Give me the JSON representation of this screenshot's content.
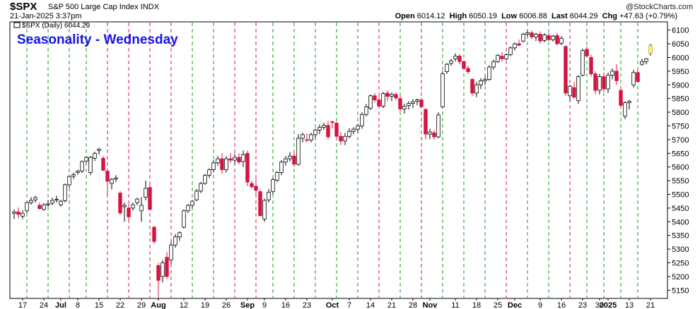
{
  "header": {
    "symbol": "$SPX",
    "description": "S&P 500 Large Cap Index INDX",
    "datetime": "21-Jan-2025 3:37pm",
    "brand": "@StockCharts.com",
    "open_label": "Open",
    "open": "6014.12",
    "high_label": "High",
    "high": "6050.19",
    "low_label": "Low",
    "low": "6006.88",
    "last_label": "Last",
    "last": "6044.29",
    "chg_label": "Chg",
    "chg": "+47.63 (+0.79%)"
  },
  "legend": {
    "label": "$SPX (Daily) 6044.29"
  },
  "annotation": {
    "text": "Seasonality - Wednesday"
  },
  "chart_data": {
    "type": "candlestick",
    "ylim": [
      5120,
      6130
    ],
    "yticks": [
      5150,
      5200,
      5250,
      5300,
      5350,
      5400,
      5450,
      5500,
      5550,
      5600,
      5650,
      5700,
      5750,
      5800,
      5850,
      5900,
      5950,
      6000,
      6050,
      6100
    ],
    "xtick_labels": [
      {
        "label": "17",
        "i": 2
      },
      {
        "label": "24",
        "i": 7
      },
      {
        "label": "Jul",
        "i": 11,
        "bold": true
      },
      {
        "label": "8",
        "i": 15
      },
      {
        "label": "15",
        "i": 20
      },
      {
        "label": "22",
        "i": 25
      },
      {
        "label": "29",
        "i": 30
      },
      {
        "label": "Aug",
        "i": 34,
        "bold": true
      },
      {
        "label": "12",
        "i": 40
      },
      {
        "label": "19",
        "i": 45
      },
      {
        "label": "26",
        "i": 50
      },
      {
        "label": "Sep",
        "i": 55,
        "bold": true
      },
      {
        "label": "9",
        "i": 59
      },
      {
        "label": "16",
        "i": 64
      },
      {
        "label": "23",
        "i": 69
      },
      {
        "label": "Oct",
        "i": 75,
        "bold": true
      },
      {
        "label": "7",
        "i": 79
      },
      {
        "label": "14",
        "i": 84
      },
      {
        "label": "21",
        "i": 89
      },
      {
        "label": "28",
        "i": 94
      },
      {
        "label": "Nov",
        "i": 98,
        "bold": true
      },
      {
        "label": "11",
        "i": 104
      },
      {
        "label": "18",
        "i": 109
      },
      {
        "label": "25",
        "i": 114
      },
      {
        "label": "Dec",
        "i": 118,
        "bold": true
      },
      {
        "label": "9",
        "i": 124
      },
      {
        "label": "16",
        "i": 129
      },
      {
        "label": "23",
        "i": 134
      },
      {
        "label": "30",
        "i": 138
      },
      {
        "label": "2025",
        "i": 140,
        "bold": true
      },
      {
        "label": "13",
        "i": 145
      },
      {
        "label": "21",
        "i": 150
      }
    ],
    "wednesday_indices": [
      3,
      8,
      13,
      17,
      22,
      27,
      32,
      37,
      42,
      47,
      52,
      57,
      61,
      66,
      71,
      76,
      81,
      86,
      91,
      96,
      101,
      106,
      111,
      116,
      121,
      126,
      131,
      135,
      139,
      143,
      147
    ],
    "wednesday_colors": [
      "green",
      "green",
      "green",
      "green",
      "red",
      "red",
      "red",
      "red",
      "green",
      "green",
      "red",
      "red",
      "green",
      "green",
      "green",
      "green",
      "green",
      "red",
      "green",
      "red",
      "green",
      "green",
      "green",
      "red",
      "green",
      "green",
      "red",
      "green",
      "green",
      "green",
      "green"
    ],
    "candles": [
      [
        5431,
        5445,
        5410,
        5436
      ],
      [
        5436,
        5452,
        5412,
        5427
      ],
      [
        5420,
        5442,
        5410,
        5431
      ],
      [
        5440,
        5475,
        5432,
        5470
      ],
      [
        5470,
        5490,
        5462,
        5478
      ],
      [
        5480,
        5495,
        5470,
        5488
      ],
      [
        5460,
        5470,
        5445,
        5448
      ],
      [
        5445,
        5468,
        5440,
        5462
      ],
      [
        5462,
        5480,
        5455,
        5465
      ],
      [
        5468,
        5488,
        5460,
        5478
      ],
      [
        5480,
        5495,
        5470,
        5482
      ],
      [
        5462,
        5480,
        5455,
        5475
      ],
      [
        5477,
        5540,
        5470,
        5535
      ],
      [
        5535,
        5572,
        5525,
        5565
      ],
      [
        5566,
        5580,
        5556,
        5572
      ],
      [
        5580,
        5590,
        5572,
        5585
      ],
      [
        5585,
        5624,
        5578,
        5620
      ],
      [
        5622,
        5640,
        5615,
        5635
      ],
      [
        5580,
        5640,
        5570,
        5635
      ],
      [
        5632,
        5656,
        5622,
        5650
      ],
      [
        5660,
        5670,
        5645,
        5665
      ],
      [
        5632,
        5640,
        5585,
        5588
      ],
      [
        5585,
        5592,
        5500,
        5548
      ],
      [
        5540,
        5560,
        5518,
        5555
      ],
      [
        5556,
        5570,
        5545,
        5560
      ],
      [
        5505,
        5512,
        5425,
        5432
      ],
      [
        5455,
        5470,
        5400,
        5460
      ],
      [
        5450,
        5470,
        5395,
        5418
      ],
      [
        5450,
        5470,
        5440,
        5462
      ],
      [
        5470,
        5488,
        5460,
        5483
      ],
      [
        5440,
        5490,
        5400,
        5460
      ],
      [
        5490,
        5550,
        5478,
        5522
      ],
      [
        5525,
        5545,
        5440,
        5445
      ],
      [
        5380,
        5385,
        5320,
        5328
      ],
      [
        5240,
        5250,
        5122,
        5186
      ],
      [
        5200,
        5260,
        5178,
        5250
      ],
      [
        5270,
        5290,
        5190,
        5200
      ],
      [
        5260,
        5330,
        5245,
        5315
      ],
      [
        5315,
        5355,
        5305,
        5345
      ],
      [
        5345,
        5365,
        5330,
        5360
      ],
      [
        5380,
        5445,
        5375,
        5440
      ],
      [
        5440,
        5465,
        5432,
        5460
      ],
      [
        5460,
        5480,
        5450,
        5475
      ],
      [
        5480,
        5520,
        5475,
        5512
      ],
      [
        5512,
        5545,
        5505,
        5540
      ],
      [
        5540,
        5575,
        5535,
        5570
      ],
      [
        5570,
        5595,
        5560,
        5590
      ],
      [
        5590,
        5625,
        5580,
        5615
      ],
      [
        5615,
        5640,
        5605,
        5630
      ],
      [
        5630,
        5650,
        5575,
        5590
      ],
      [
        5590,
        5640,
        5580,
        5630
      ],
      [
        5630,
        5650,
        5615,
        5625
      ],
      [
        5625,
        5648,
        5610,
        5635
      ],
      [
        5635,
        5650,
        5610,
        5618
      ],
      [
        5620,
        5660,
        5600,
        5645
      ],
      [
        5650,
        5660,
        5530,
        5545
      ],
      [
        5540,
        5550,
        5520,
        5528
      ],
      [
        5530,
        5560,
        5500,
        5515
      ],
      [
        5510,
        5520,
        5420,
        5422
      ],
      [
        5410,
        5485,
        5400,
        5478
      ],
      [
        5480,
        5520,
        5470,
        5508
      ],
      [
        5510,
        5560,
        5500,
        5554
      ],
      [
        5552,
        5585,
        5545,
        5580
      ],
      [
        5580,
        5625,
        5570,
        5618
      ],
      [
        5618,
        5640,
        5605,
        5630
      ],
      [
        5630,
        5655,
        5620,
        5640
      ],
      [
        5640,
        5660,
        5600,
        5610
      ],
      [
        5610,
        5720,
        5605,
        5705
      ],
      [
        5705,
        5725,
        5690,
        5718
      ],
      [
        5700,
        5722,
        5690,
        5698
      ],
      [
        5698,
        5725,
        5690,
        5718
      ],
      [
        5718,
        5740,
        5705,
        5735
      ],
      [
        5735,
        5755,
        5720,
        5745
      ],
      [
        5745,
        5762,
        5735,
        5752
      ],
      [
        5752,
        5768,
        5700,
        5710
      ],
      [
        5765,
        5770,
        5740,
        5762
      ],
      [
        5760,
        5765,
        5700,
        5712
      ],
      [
        5712,
        5728,
        5680,
        5695
      ],
      [
        5695,
        5725,
        5680,
        5712
      ],
      [
        5712,
        5742,
        5705,
        5730
      ],
      [
        5730,
        5745,
        5720,
        5738
      ],
      [
        5738,
        5758,
        5725,
        5750
      ],
      [
        5750,
        5800,
        5740,
        5792
      ],
      [
        5792,
        5830,
        5785,
        5820
      ],
      [
        5815,
        5865,
        5808,
        5860
      ],
      [
        5860,
        5870,
        5835,
        5845
      ],
      [
        5845,
        5862,
        5815,
        5822
      ],
      [
        5822,
        5875,
        5815,
        5868
      ],
      [
        5870,
        5880,
        5840,
        5858
      ],
      [
        5858,
        5872,
        5840,
        5865
      ],
      [
        5865,
        5872,
        5845,
        5852
      ],
      [
        5850,
        5862,
        5800,
        5812
      ],
      [
        5812,
        5830,
        5795,
        5822
      ],
      [
        5825,
        5840,
        5810,
        5832
      ],
      [
        5832,
        5848,
        5815,
        5838
      ],
      [
        5840,
        5850,
        5825,
        5845
      ],
      [
        5845,
        5852,
        5815,
        5820
      ],
      [
        5810,
        5815,
        5700,
        5720
      ],
      [
        5720,
        5740,
        5702,
        5728
      ],
      [
        5725,
        5735,
        5700,
        5710
      ],
      [
        5710,
        5800,
        5705,
        5790
      ],
      [
        5820,
        5950,
        5815,
        5940
      ],
      [
        5948,
        5980,
        5940,
        5975
      ],
      [
        5978,
        5995,
        5970,
        5988
      ],
      [
        5995,
        6015,
        5985,
        6005
      ],
      [
        6005,
        6012,
        5975,
        5985
      ],
      [
        5985,
        5990,
        5955,
        5960
      ],
      [
        5960,
        5970,
        5940,
        5948
      ],
      [
        5920,
        5925,
        5860,
        5870
      ],
      [
        5870,
        5910,
        5855,
        5900
      ],
      [
        5900,
        5925,
        5885,
        5915
      ],
      [
        5915,
        5930,
        5900,
        5920
      ],
      [
        5920,
        5972,
        5915,
        5965
      ],
      [
        5965,
        5992,
        5955,
        5985
      ],
      [
        5985,
        6012,
        5980,
        6008
      ],
      [
        6005,
        6020,
        5985,
        5995
      ],
      [
        5995,
        6015,
        5990,
        6010
      ],
      [
        6010,
        6040,
        6005,
        6035
      ],
      [
        6035,
        6055,
        6025,
        6050
      ],
      [
        6050,
        6065,
        6040,
        6045
      ],
      [
        6060,
        6090,
        6055,
        6085
      ],
      [
        6085,
        6100,
        6075,
        6090
      ],
      [
        6090,
        6098,
        6068,
        6075
      ],
      [
        6075,
        6090,
        6060,
        6085
      ],
      [
        6085,
        6095,
        6050,
        6060
      ],
      [
        6062,
        6088,
        6055,
        6082
      ],
      [
        6080,
        6090,
        6060,
        6065
      ],
      [
        6065,
        6082,
        6058,
        6078
      ],
      [
        6080,
        6090,
        6045,
        6050
      ],
      [
        6052,
        6078,
        6045,
        6070
      ],
      [
        6040,
        6045,
        5860,
        5870
      ],
      [
        5860,
        5900,
        5840,
        5895
      ],
      [
        5890,
        5910,
        5850,
        5855
      ],
      [
        5842,
        5935,
        5830,
        5930
      ],
      [
        5935,
        6032,
        5930,
        6025
      ],
      [
        6030,
        6040,
        6000,
        6005
      ],
      [
        6000,
        6010,
        5930,
        5940
      ],
      [
        5940,
        5950,
        5865,
        5880
      ],
      [
        5880,
        5940,
        5865,
        5930
      ],
      [
        5930,
        5945,
        5875,
        5885
      ],
      [
        5885,
        5945,
        5870,
        5935
      ],
      [
        5935,
        5960,
        5920,
        5950
      ],
      [
        5950,
        5975,
        5900,
        5915
      ],
      [
        5880,
        5895,
        5815,
        5825
      ],
      [
        5785,
        5840,
        5775,
        5835
      ],
      [
        5835,
        5845,
        5810,
        5840
      ],
      [
        5900,
        5955,
        5890,
        5945
      ],
      [
        5945,
        5958,
        5908,
        5912
      ],
      [
        5975,
        5995,
        5970,
        5985
      ],
      [
        5985,
        5998,
        5975,
        5995
      ],
      [
        6015,
        6050,
        6007,
        6044
      ]
    ]
  },
  "colors": {
    "up_fill": "#ffffff",
    "up_stroke": "#000000",
    "down_fill": "#d31540",
    "last_fill": "#fff176",
    "green_line": "#1a9a1a",
    "red_line": "#d31540",
    "annotation": "#1515ee"
  }
}
